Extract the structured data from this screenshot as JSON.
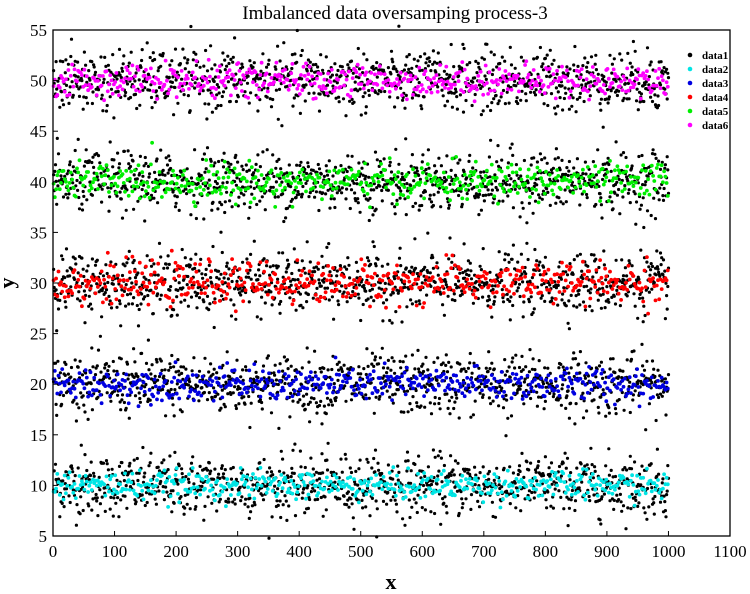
{
  "chart_data": {
    "type": "scatter",
    "title": "Imbalanced data oversamping process-3",
    "xlabel": "x",
    "ylabel": "y",
    "xlim": [
      0,
      1100
    ],
    "ylim": [
      5,
      55
    ],
    "xticks": [
      "0",
      "100",
      "200",
      "300",
      "400",
      "500",
      "600",
      "700",
      "800",
      "900",
      "1000",
      "1100"
    ],
    "yticks": [
      "5",
      "10",
      "15",
      "20",
      "25",
      "30",
      "35",
      "40",
      "45",
      "50",
      "55"
    ],
    "grid": false,
    "legend_position": "top-right",
    "x_range_of_points": [
      1,
      1000
    ],
    "series": [
      {
        "name": "data1",
        "color": "#000000",
        "centers": [
          10,
          20,
          30,
          40,
          50
        ],
        "spread": 1.5
      },
      {
        "name": "data2",
        "color": "#00e5e5",
        "center": 10,
        "spread": 0.7
      },
      {
        "name": "data3",
        "color": "#0000e0",
        "center": 20,
        "spread": 0.8
      },
      {
        "name": "data4",
        "color": "#ff0000",
        "center": 30,
        "spread": 1.0
      },
      {
        "name": "data5",
        "color": "#00ee00",
        "center": 40,
        "spread": 0.9
      },
      {
        "name": "data6",
        "color": "#ff00ff",
        "center": 50,
        "spread": 0.8
      }
    ]
  }
}
